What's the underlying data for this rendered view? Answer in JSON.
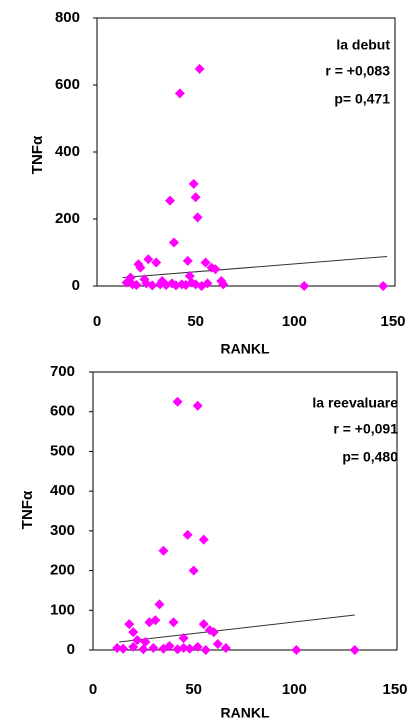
{
  "chart_data": [
    {
      "type": "scatter",
      "color": "#ff00ff",
      "xlabel": "RANKL",
      "ylabel": "TNFα",
      "xlim": [
        0,
        150
      ],
      "xticks": [
        0,
        50,
        100,
        150
      ],
      "ylim": [
        0,
        800
      ],
      "yticks": [
        0,
        200,
        400,
        600,
        800
      ],
      "annotations": [
        "la debut",
        "r = +0,083",
        "p= 0,471"
      ],
      "x": [
        42,
        52,
        49,
        50,
        37,
        51,
        39,
        30,
        26,
        21,
        22,
        46,
        55,
        58,
        60,
        63,
        64,
        15,
        18,
        20,
        25,
        28,
        32,
        35,
        38,
        40,
        43,
        45,
        48,
        50,
        53,
        56,
        105,
        145,
        17,
        24,
        33,
        47
      ],
      "values": [
        575,
        648,
        305,
        265,
        255,
        205,
        130,
        70,
        80,
        65,
        55,
        75,
        70,
        55,
        50,
        15,
        5,
        10,
        5,
        3,
        8,
        2,
        5,
        3,
        8,
        2,
        5,
        3,
        10,
        5,
        0,
        8,
        0,
        0,
        25,
        20,
        15,
        30
      ],
      "trend": {
        "color": "#333333",
        "x": [
          13,
          147
        ],
        "values": [
          25,
          88
        ]
      }
    },
    {
      "type": "scatter",
      "color": "#ff00ff",
      "xlabel": "RANKL",
      "ylabel": "TNFα",
      "xlim": [
        0,
        150
      ],
      "xticks": [
        0,
        50,
        100,
        150
      ],
      "ylim": [
        0,
        700
      ],
      "yticks": [
        0,
        100,
        200,
        300,
        400,
        500,
        600,
        700
      ],
      "annotations": [
        "la reevaluare",
        "r = +0,091",
        "p= 0,480"
      ],
      "x": [
        42,
        52,
        47,
        55,
        35,
        50,
        33,
        28,
        31,
        18,
        20,
        40,
        55,
        58,
        60,
        62,
        66,
        12,
        15,
        20,
        25,
        30,
        35,
        38,
        42,
        45,
        48,
        52,
        56,
        101,
        130,
        22,
        26,
        45
      ],
      "values": [
        625,
        615,
        290,
        278,
        250,
        200,
        115,
        70,
        75,
        65,
        45,
        70,
        65,
        50,
        45,
        15,
        5,
        5,
        3,
        8,
        2,
        5,
        3,
        10,
        2,
        5,
        3,
        8,
        0,
        0,
        0,
        25,
        20,
        30
      ],
      "trend": {
        "color": "#333333",
        "x": [
          13,
          130
        ],
        "values": [
          20,
          88
        ]
      }
    }
  ]
}
